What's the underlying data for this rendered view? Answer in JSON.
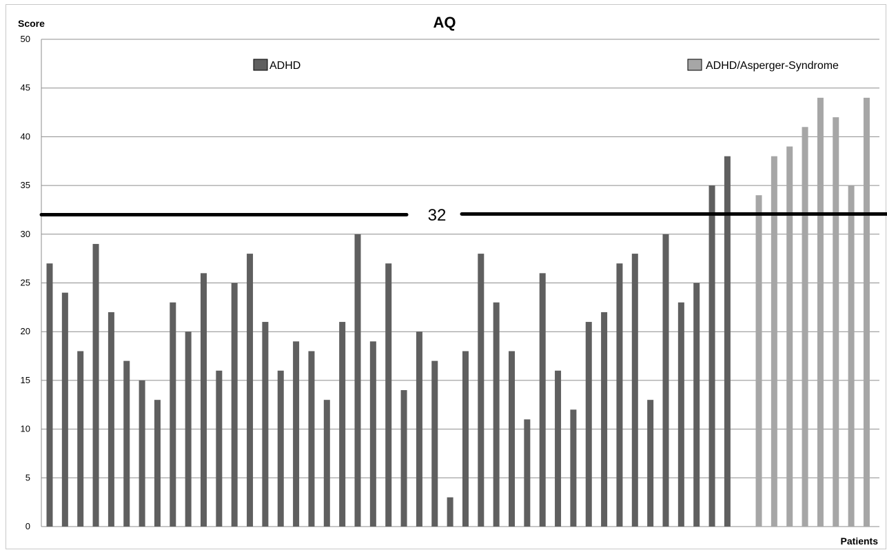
{
  "chart_data": {
    "type": "bar",
    "title": "AQ",
    "ylabel": "Score",
    "xlabel": "Patients",
    "ylim": [
      0,
      50
    ],
    "yticks": [
      0,
      5,
      10,
      15,
      20,
      25,
      30,
      35,
      40,
      45,
      50
    ],
    "grid": true,
    "legend_placement": "top",
    "series": [
      {
        "name": "ADHD",
        "color": "#5f5f5f",
        "values": [
          27,
          24,
          18,
          29,
          22,
          17,
          15,
          13,
          23,
          20,
          26,
          16,
          25,
          28,
          21,
          16,
          19,
          18,
          13,
          21,
          30,
          19,
          27,
          14,
          20,
          17,
          3,
          18,
          28,
          23,
          18,
          11,
          26,
          16,
          12,
          21,
          22,
          27,
          28,
          13,
          30,
          23,
          25,
          35,
          38
        ]
      },
      {
        "name": "ADHD/Asperger-Syndrome",
        "color": "#a6a6a6",
        "values": [
          34,
          38,
          39,
          41,
          44,
          42,
          35,
          44
        ]
      }
    ],
    "threshold": {
      "value": 32,
      "label": "32"
    }
  }
}
